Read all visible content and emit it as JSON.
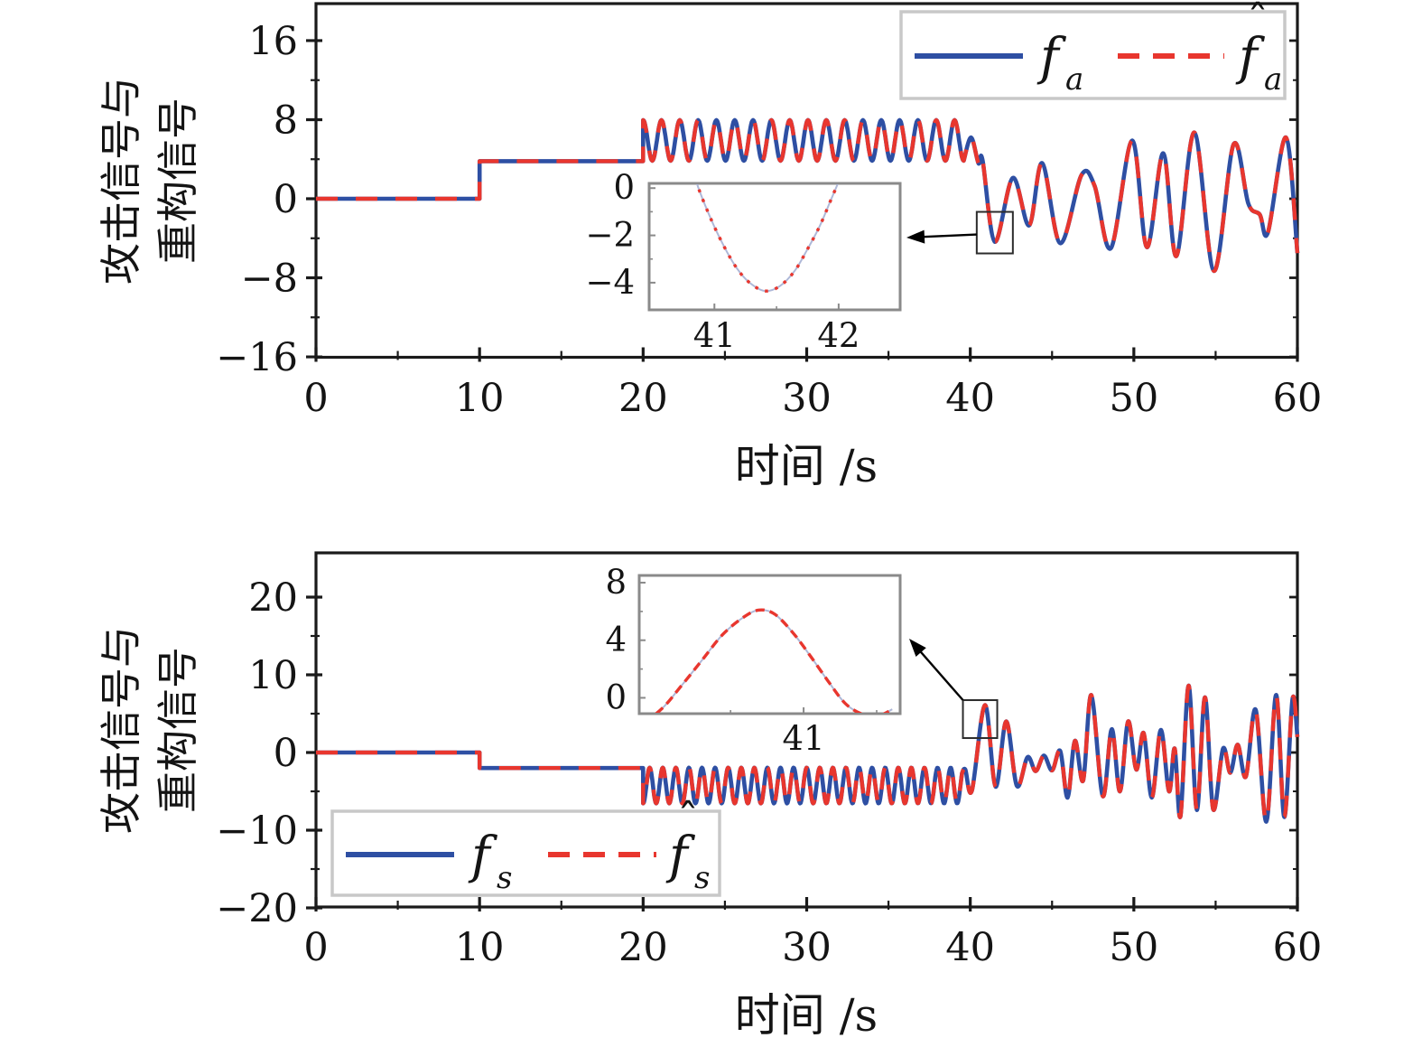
{
  "figure": {
    "description_note": "two stacked line plots: attack signal vs reconstructed signal over time",
    "background": "#ffffff"
  },
  "colors": {
    "attack_signal": "#2e4fa3",
    "reconstructed_signal": "#e8362e",
    "inset_underlay_line": "#aeb8d8",
    "axis": "#1a1a1a",
    "text": "#141414",
    "legend_border": "#c8c8c8",
    "inset_border": "#8a8a8a",
    "callout": "#2c2c2c"
  },
  "chart_data": [
    {
      "type": "line",
      "panel": "top",
      "xlabel": "时间 /s",
      "ylabel": "攻击信号与重构信号",
      "ylabel_lines": [
        "攻击信号与",
        "重构信号"
      ],
      "xlim": [
        0,
        60
      ],
      "ylim": [
        -16,
        20
      ],
      "xticks": [
        0,
        10,
        20,
        30,
        40,
        50,
        60
      ],
      "yticks": [
        16,
        8,
        0,
        -8,
        -16
      ],
      "minor_x_step": 5,
      "minor_y_step": 4,
      "grid": false,
      "legend": {
        "position": "top-right",
        "entries": [
          {
            "base": "f",
            "sub": "a",
            "hat": false,
            "color": "#2e4fa3",
            "style": "solid",
            "series": "attack-signal"
          },
          {
            "base": "f",
            "sub": "a",
            "hat": true,
            "color": "#e8362e",
            "style": "dashed",
            "series": "reconstructed-signal"
          }
        ]
      },
      "series_note": "reconstructed signal overlaps the attack signal; same curve drawn solid blue then dashed red",
      "signal": {
        "segments": [
          {
            "kind": "const",
            "t0": 0,
            "t1": 10,
            "value": 0
          },
          {
            "kind": "const",
            "t0": 10,
            "t1": 20,
            "value": 3.8
          },
          {
            "kind": "sine",
            "t0": 20,
            "t1": 39.6,
            "mean": 5.9,
            "amp": 2.05,
            "period": 1.12,
            "phase_deg": 90
          },
          {
            "kind": "points",
            "points": [
              [
                40.05,
                6.2
              ],
              [
                40.5,
                3.6
              ],
              [
                40.75,
                3.9
              ],
              [
                41.5,
                -4.35
              ],
              [
                42.6,
                2.1
              ],
              [
                43.6,
                -2.7
              ],
              [
                44.4,
                3.6
              ],
              [
                45.5,
                -4.5
              ],
              [
                46.8,
                2.4
              ],
              [
                47.6,
                1.3
              ],
              [
                48.6,
                -5.0
              ],
              [
                49.9,
                5.9
              ],
              [
                50.8,
                -4.9
              ],
              [
                51.8,
                4.6
              ],
              [
                52.6,
                -5.8
              ],
              [
                53.7,
                6.7
              ],
              [
                54.9,
                -7.3
              ],
              [
                56.1,
                5.5
              ],
              [
                57.0,
                -0.5
              ],
              [
                57.7,
                -1.6
              ],
              [
                58.2,
                -3.4
              ],
              [
                59.3,
                6.2
              ],
              [
                60.0,
                -5.5
              ]
            ]
          }
        ]
      },
      "inset": {
        "x_span": [
          40.46,
          42.51
        ],
        "y_span": [
          -5.15,
          0.2
        ],
        "xticks": [
          {
            "label": "41",
            "f": 0.26
          },
          {
            "label": "42",
            "f": 0.755
          }
        ],
        "minor_x_f": [
          0.5075
        ],
        "yticks": [
          0,
          -2,
          -4
        ],
        "minor_yticks": [
          -1,
          -3
        ],
        "points": [
          [
            0.16,
            1.2
          ],
          [
            0.2,
            -0.1
          ],
          [
            0.25,
            -1.4
          ],
          [
            0.3,
            -2.5
          ],
          [
            0.35,
            -3.4
          ],
          [
            0.4,
            -4.0
          ],
          [
            0.46,
            -4.35
          ],
          [
            0.52,
            -4.15
          ],
          [
            0.58,
            -3.5
          ],
          [
            0.63,
            -2.6
          ],
          [
            0.68,
            -1.6
          ],
          [
            0.72,
            -0.6
          ],
          [
            0.76,
            0.4
          ],
          [
            0.79,
            1.2
          ]
        ],
        "marks_region": {
          "t_center": 41.5,
          "v_center": -3.43
        }
      }
    },
    {
      "type": "line",
      "panel": "bottom",
      "xlabel": "时间 /s",
      "ylabel": "攻击信号与重构信号",
      "ylabel_lines": [
        "攻击信号与",
        "重构信号"
      ],
      "xlim": [
        0,
        60
      ],
      "ylim": [
        -20,
        26
      ],
      "xticks": [
        0,
        10,
        20,
        30,
        40,
        50,
        60
      ],
      "yticks": [
        20,
        10,
        0,
        -10,
        -20
      ],
      "minor_x_step": 5,
      "minor_y_step": 5,
      "grid": false,
      "legend": {
        "position": "bottom-left",
        "entries": [
          {
            "base": "f",
            "sub": "s",
            "hat": false,
            "color": "#2e4fa3",
            "style": "solid",
            "series": "attack-signal"
          },
          {
            "base": "f",
            "sub": "s",
            "hat": true,
            "color": "#e8362e",
            "style": "dashed",
            "series": "reconstructed-signal"
          }
        ]
      },
      "series_note": "reconstructed signal overlaps the attack signal; same curve drawn solid blue then dashed red",
      "signal": {
        "segments": [
          {
            "kind": "const",
            "t0": 0,
            "t1": 10,
            "value": 0
          },
          {
            "kind": "const",
            "t0": 10,
            "t1": 20,
            "value": -2
          },
          {
            "kind": "sine",
            "t0": 20,
            "t1": 39.5,
            "mean": -4.25,
            "amp": 2.3,
            "period": 0.8,
            "phase_deg": -90
          },
          {
            "kind": "points",
            "points": [
              [
                39.7,
                -2.2
              ],
              [
                40.1,
                -4.9
              ],
              [
                40.9,
                6.1
              ],
              [
                41.55,
                -4.4
              ],
              [
                42.2,
                4.0
              ],
              [
                42.85,
                -4.3
              ],
              [
                43.5,
                -0.6
              ],
              [
                44.0,
                -2.4
              ],
              [
                44.5,
                -0.4
              ],
              [
                45.0,
                -2.3
              ],
              [
                45.5,
                0.2
              ],
              [
                45.95,
                -5.8
              ],
              [
                46.4,
                1.5
              ],
              [
                46.9,
                -3.6
              ],
              [
                47.4,
                7.4
              ],
              [
                48.1,
                -5.6
              ],
              [
                48.65,
                3.0
              ],
              [
                49.15,
                -5.0
              ],
              [
                49.65,
                4.0
              ],
              [
                50.15,
                -2.2
              ],
              [
                50.6,
                2.5
              ],
              [
                51.1,
                -5.8
              ],
              [
                51.65,
                2.9
              ],
              [
                52.15,
                -5.0
              ],
              [
                52.5,
                0.5
              ],
              [
                52.85,
                -8.2
              ],
              [
                53.35,
                8.6
              ],
              [
                53.85,
                -7.4
              ],
              [
                54.35,
                7.1
              ],
              [
                54.85,
                -7.3
              ],
              [
                55.45,
                0.5
              ],
              [
                55.9,
                -2.6
              ],
              [
                56.35,
                1.0
              ],
              [
                56.85,
                -3.1
              ],
              [
                57.45,
                5.5
              ],
              [
                58.1,
                -8.9
              ],
              [
                58.7,
                7.4
              ],
              [
                59.2,
                -8.3
              ],
              [
                59.7,
                6.9
              ],
              [
                60.0,
                2.0
              ]
            ]
          }
        ]
      },
      "inset": {
        "x_span": [
          40.3,
          41.75
        ],
        "y_span": [
          -1.1,
          8.5
        ],
        "xticks": [
          {
            "label": "41",
            "f": 0.63
          }
        ],
        "minor_x_f": [
          0.35,
          0.91
        ],
        "yticks": [
          8,
          4,
          0
        ],
        "minor_yticks": [
          6,
          2
        ],
        "points": [
          [
            0.02,
            -1.7
          ],
          [
            0.09,
            -0.7
          ],
          [
            0.16,
            0.8
          ],
          [
            0.24,
            2.6
          ],
          [
            0.32,
            4.4
          ],
          [
            0.4,
            5.6
          ],
          [
            0.46,
            6.1
          ],
          [
            0.52,
            5.8
          ],
          [
            0.59,
            4.5
          ],
          [
            0.66,
            2.8
          ],
          [
            0.73,
            1.0
          ],
          [
            0.79,
            -0.4
          ],
          [
            0.85,
            -1.1
          ],
          [
            0.91,
            -1.3
          ],
          [
            0.97,
            -0.8
          ]
        ],
        "marks_region": {
          "t_center": 40.6,
          "v_center": 4.3
        }
      }
    }
  ]
}
